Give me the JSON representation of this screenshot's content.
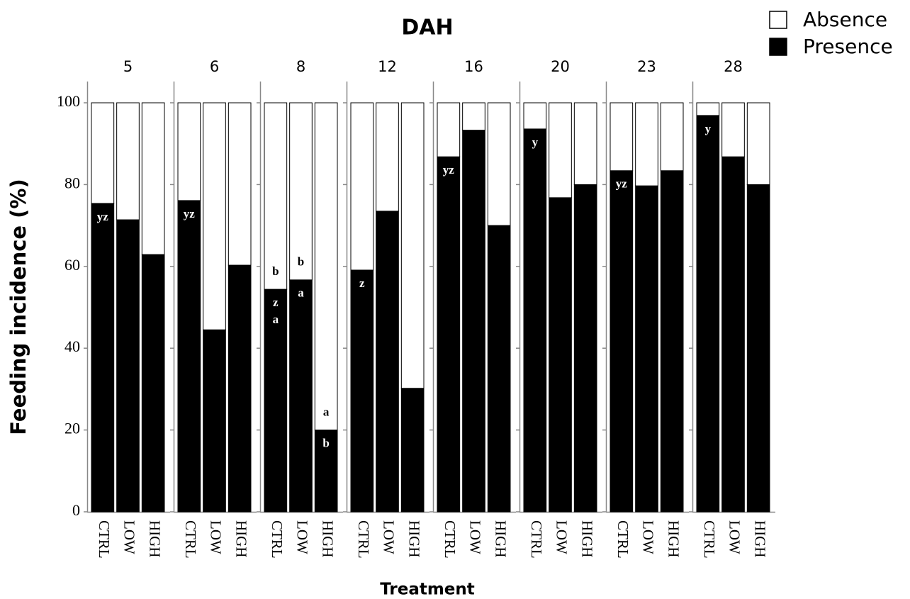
{
  "chart_data": {
    "type": "bar",
    "stacked": true,
    "title": "DAH",
    "x_label": "Treatment",
    "y_label": "Feeding incidence (%)",
    "facets": [
      "5",
      "6",
      "8",
      "12",
      "16",
      "20",
      "23",
      "28"
    ],
    "categories": [
      "CTRL",
      "LOW",
      "HIGH"
    ],
    "ylim": [
      0,
      100
    ],
    "yticks": [
      0,
      20,
      40,
      60,
      80,
      100
    ],
    "legend": "top-right",
    "series": [
      {
        "name": "Presence",
        "color": "#000000",
        "values": [
          [
            75.4,
            71.4,
            62.9
          ],
          [
            76.1,
            44.5,
            60.3
          ],
          [
            54.4,
            56.7,
            20
          ],
          [
            59.1,
            73.5,
            30.2
          ],
          [
            86.8,
            93.3,
            70
          ],
          [
            93.6,
            76.8,
            80
          ],
          [
            83.4,
            79.7,
            83.4
          ],
          [
            96.9,
            86.8,
            80
          ]
        ],
        "annotations": [
          [
            [
              "yz"
            ],
            [],
            []
          ],
          [
            [
              "yz"
            ],
            [],
            []
          ],
          [
            [
              "z",
              "a"
            ],
            [
              "a"
            ],
            [
              "b"
            ]
          ],
          [
            [
              "z"
            ],
            [],
            []
          ],
          [
            [
              "yz"
            ],
            [],
            []
          ],
          [
            [
              "y"
            ],
            [],
            []
          ],
          [
            [
              "yz"
            ],
            [],
            []
          ],
          [
            [
              "y"
            ],
            [],
            []
          ]
        ]
      },
      {
        "name": "Absence",
        "color": "#ffffff",
        "values": [
          [
            24.6,
            28.6,
            37.1
          ],
          [
            23.9,
            55.5,
            39.7
          ],
          [
            45.6,
            43.3,
            80
          ],
          [
            40.9,
            26.5,
            69.8
          ],
          [
            13.2,
            6.7,
            30
          ],
          [
            6.4,
            23.2,
            20
          ],
          [
            16.6,
            20.3,
            16.6
          ],
          [
            3.1,
            13.2,
            20
          ]
        ],
        "annotations": [
          [
            [],
            [],
            []
          ],
          [
            [],
            [],
            []
          ],
          [
            [
              "b"
            ],
            [
              "b"
            ],
            [
              "a"
            ]
          ],
          [
            [],
            [],
            []
          ],
          [
            [],
            [],
            []
          ],
          [
            [],
            [],
            []
          ],
          [
            [],
            [],
            []
          ],
          [
            [],
            [],
            []
          ]
        ]
      }
    ]
  }
}
